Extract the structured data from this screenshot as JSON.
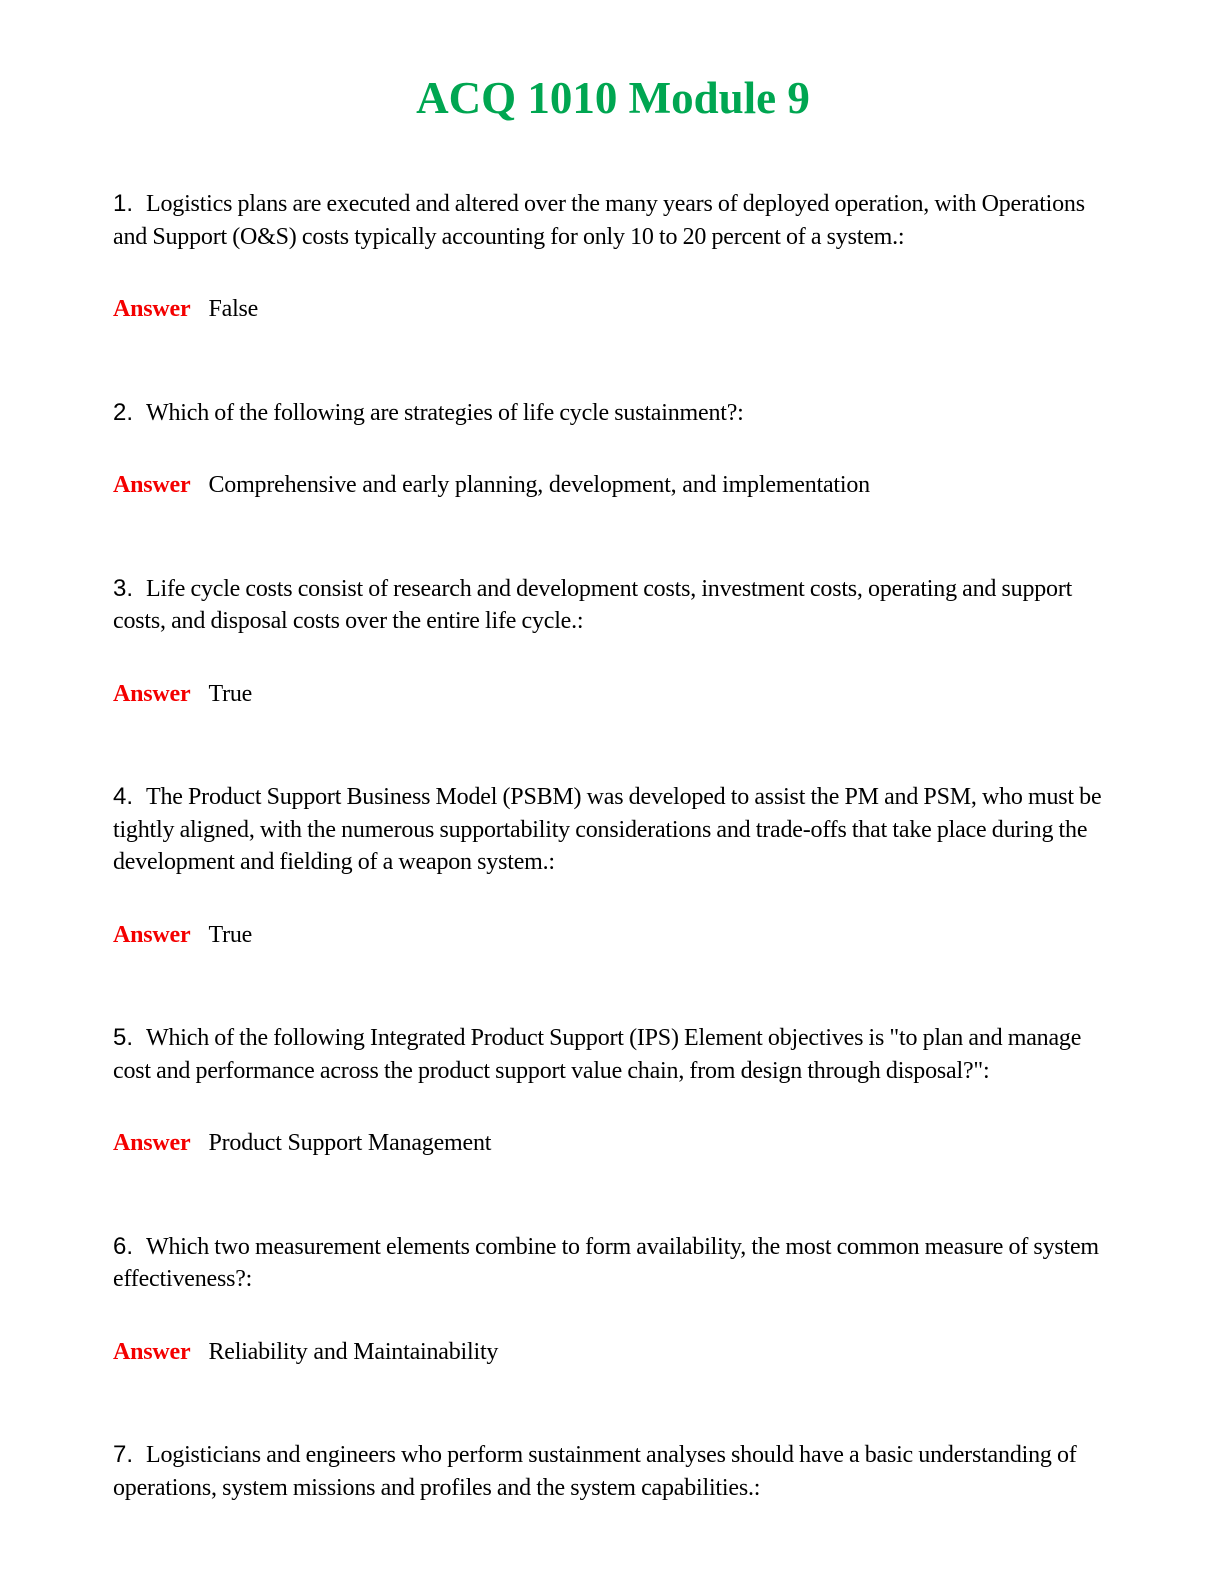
{
  "title": {
    "text": "ACQ 1010 Module 9",
    "color": "#00A651"
  },
  "answer_label": "Answer",
  "colors": {
    "title_green": "#00A651",
    "answer_red": "#F40000",
    "body_text": "#000000",
    "page_background": "#ffffff"
  },
  "questions": [
    {
      "number": "1.",
      "text": "Logistics plans are executed and altered over the many years of deployed operation, with Operations and Support (O&S) costs typically accounting for only 10 to 20 percent of a system.:",
      "answer": "False"
    },
    {
      "number": "2.",
      "text": "Which of the following are strategies of life cycle sustainment?:",
      "answer": "Comprehensive and early planning, development, and implementation"
    },
    {
      "number": "3.",
      "text": "Life cycle costs consist of research and development costs, investment costs, operating and support costs, and disposal costs over the entire life cycle.:",
      "answer": "True"
    },
    {
      "number": "4.",
      "text": "The Product Support Business Model (PSBM) was developed to assist the PM and PSM, who must be tightly aligned, with the numerous supportability considerations and trade-offs that take place during the development and fielding of a weapon system.:",
      "answer": "True"
    },
    {
      "number": "5.",
      "text": "Which of the following Integrated Product Support (IPS) Element objectives is \"to plan and manage cost and performance across the product support value chain, from design through disposal?\":",
      "answer": "Product Support Management"
    },
    {
      "number": "6.",
      "text": "Which two measurement elements combine to form availability, the most common measure of system effectiveness?:",
      "answer": "Reliability and Maintainability"
    },
    {
      "number": "7.",
      "text": "Logisticians and engineers who perform sustainment analyses should have a basic understanding of operations, system missions and profiles and the system capabilities.:",
      "answer": ""
    }
  ]
}
